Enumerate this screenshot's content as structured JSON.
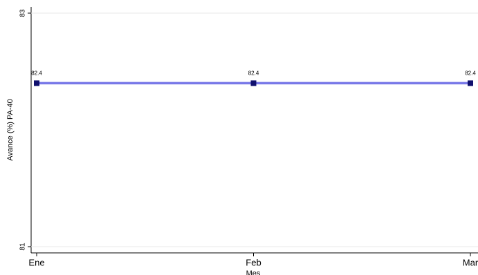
{
  "chart_data": {
    "type": "line",
    "categories": [
      "Ene",
      "Feb",
      "Mar"
    ],
    "series": [
      {
        "values": [
          82.4,
          82.4,
          82.4
        ],
        "color": "#7878e8",
        "marker_color": "#10106e"
      }
    ],
    "ylim": [
      81,
      83
    ],
    "yticks": [
      81,
      83
    ],
    "grid": true,
    "y_label": "Avance (%) PA-40",
    "x_label": "Mes"
  }
}
